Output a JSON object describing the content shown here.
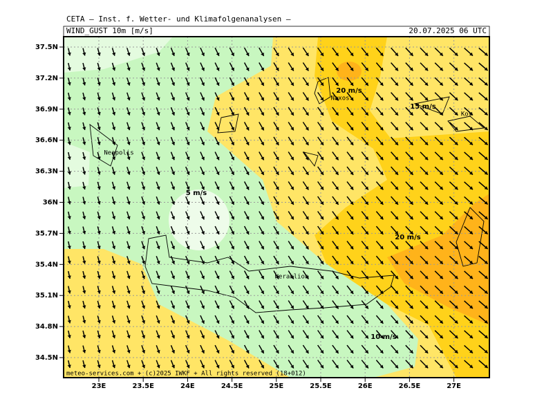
{
  "header": {
    "institute": "CETA — Inst. f. Wetter- und Klimafolgenanalysen —",
    "parameter": "WIND_GUST 10m [m/s]",
    "valid_time": "20.07.2025 06 UTC"
  },
  "axes": {
    "latitude_labels": [
      "37.5N",
      "37.2N",
      "36.9N",
      "36.6N",
      "36.3N",
      "36N",
      "35.7N",
      "35.4N",
      "35.1N",
      "34.8N",
      "34.5N"
    ],
    "longitude_labels": [
      "23E",
      "23.5E",
      "24E",
      "24.5E",
      "25E",
      "25.5E",
      "26E",
      "26.5E",
      "27E"
    ]
  },
  "places": [
    "Naxos",
    "Kos",
    "Neapolis",
    "Heraklion"
  ],
  "contour_labels": [
    "20 m/s",
    "15 m/s",
    "5 m/s",
    "20 m/s",
    "10 m/s"
  ],
  "footer": "meteo-services.com + (c)2025 IWKF + All rights reserved (18+012)"
}
